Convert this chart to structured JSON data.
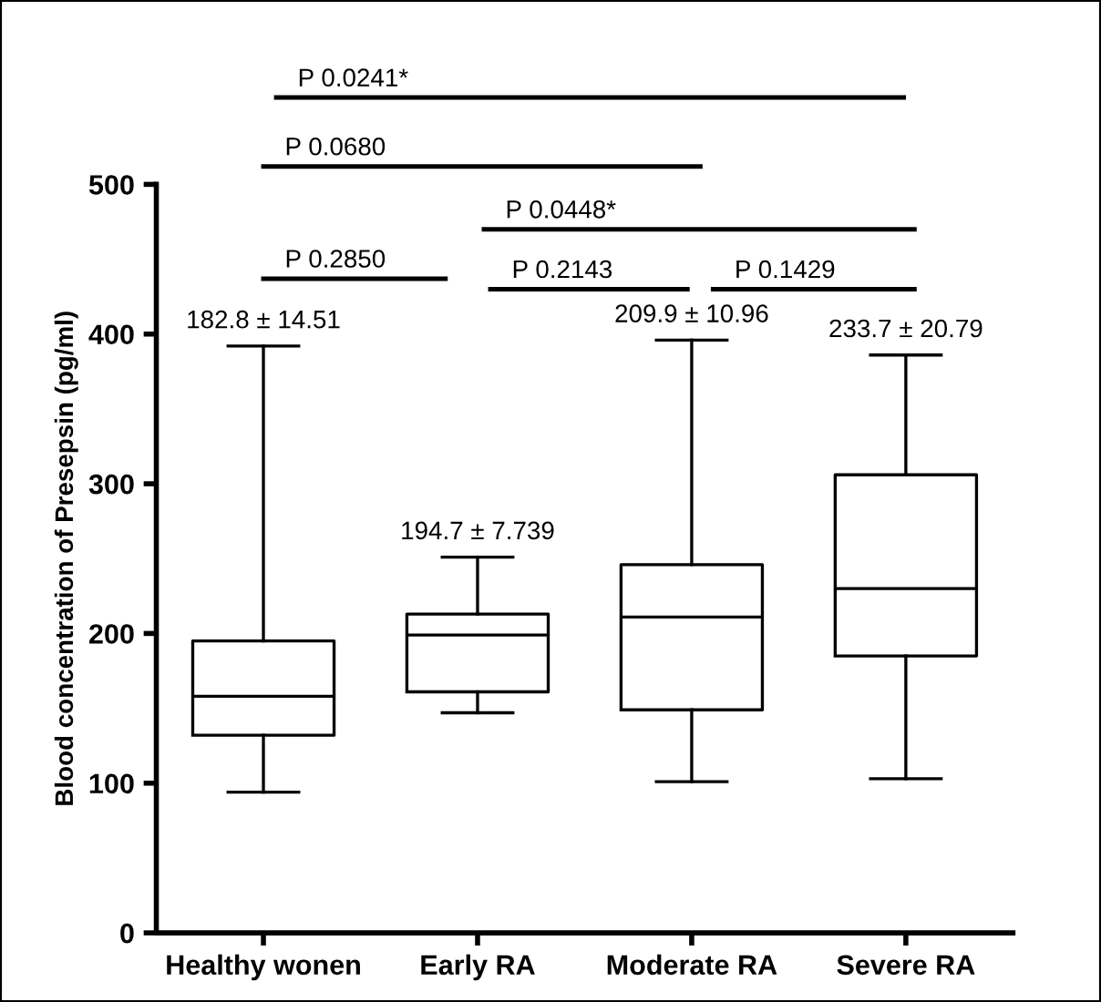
{
  "chart_data": {
    "type": "box",
    "ylabel": "Blood concentration of Presepsin (pg/ml)",
    "categories": [
      "Healthy wonen",
      "Early RA",
      "Moderate RA",
      "Severe RA"
    ],
    "boxes": [
      {
        "low": 94,
        "q1": 132,
        "median": 158,
        "q3": 195,
        "high": 392
      },
      {
        "low": 147,
        "q1": 161,
        "median": 199,
        "q3": 213,
        "high": 251
      },
      {
        "low": 101,
        "q1": 149,
        "median": 211,
        "q3": 246,
        "high": 396
      },
      {
        "low": 103,
        "q1": 185,
        "median": 230,
        "q3": 306,
        "high": 386
      }
    ],
    "ylim": [
      0,
      500
    ],
    "yticks": [
      0,
      100,
      200,
      300,
      400,
      500
    ],
    "grid": false,
    "annotations": [
      {
        "text": "182.8 ± 14.51",
        "x": "Healthy wonen",
        "y": 392
      },
      {
        "text": "194.7 ± 7.739",
        "x": "Early RA",
        "y": 251
      },
      {
        "text": "209.9 ± 10.96",
        "x": "Moderate RA",
        "y": 396
      },
      {
        "text": "233.7 ± 20.79",
        "x": "Severe RA",
        "y": 386
      },
      "P 0.0241*",
      "P 0.0680",
      "P 0.0448*",
      "P 0.2850",
      "P 0.2143",
      "P 0.1429"
    ]
  }
}
